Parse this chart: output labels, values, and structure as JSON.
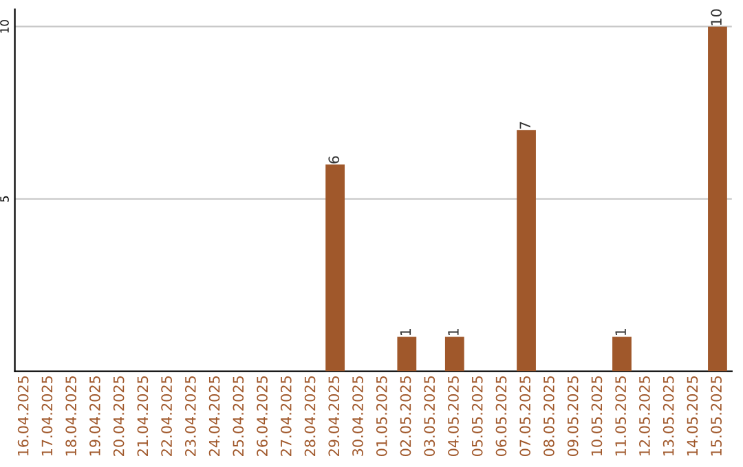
{
  "chart_data": {
    "type": "bar",
    "categories": [
      "16.04.2025",
      "17.04.2025",
      "18.04.2025",
      "19.04.2025",
      "20.04.2025",
      "21.04.2025",
      "22.04.2025",
      "23.04.2025",
      "24.04.2025",
      "25.04.2025",
      "26.04.2025",
      "27.04.2025",
      "28.04.2025",
      "29.04.2025",
      "30.04.2025",
      "01.05.2025",
      "02.05.2025",
      "03.05.2025",
      "04.05.2025",
      "05.05.2025",
      "06.05.2025",
      "07.05.2025",
      "08.05.2025",
      "09.05.2025",
      "10.05.2025",
      "11.05.2025",
      "12.05.2025",
      "13.05.2025",
      "14.05.2025",
      "15.05.2025"
    ],
    "values": [
      0,
      0,
      0,
      0,
      0,
      0,
      0,
      0,
      0,
      0,
      0,
      0,
      0,
      6,
      0,
      0,
      1,
      0,
      1,
      0,
      0,
      7,
      0,
      0,
      0,
      1,
      0,
      0,
      0,
      10
    ],
    "value_labels": [
      null,
      null,
      null,
      null,
      null,
      null,
      null,
      null,
      null,
      null,
      null,
      null,
      null,
      "6",
      null,
      null,
      "1",
      null,
      "1",
      null,
      null,
      "7",
      null,
      null,
      null,
      "1",
      null,
      null,
      null,
      "10"
    ],
    "color": "#a0582b",
    "ylim": [
      0,
      10.5
    ],
    "yticks": [
      5,
      10
    ],
    "grid": "y"
  }
}
